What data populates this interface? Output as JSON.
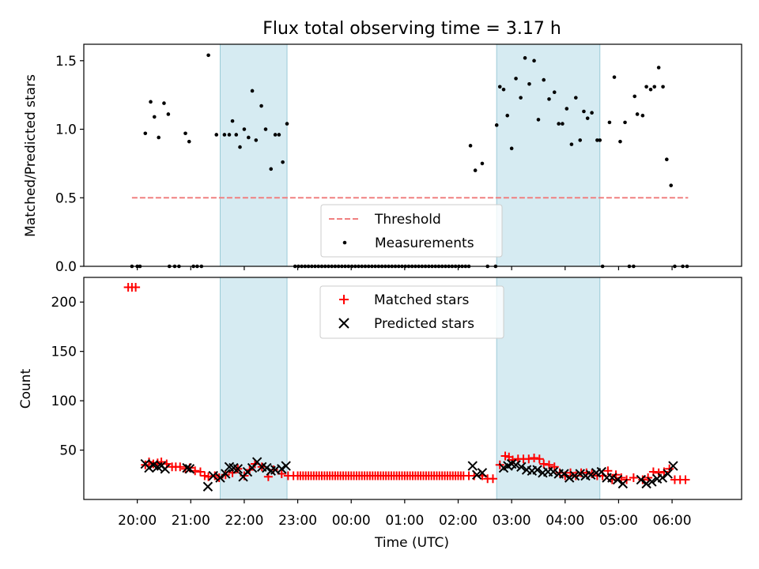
{
  "chart_data": [
    {
      "type": "scatter",
      "title": "Flux total observing time = 3.17 h",
      "xlabel": "",
      "ylabel": "Matched/Predicted stars",
      "ylim": [
        0,
        1.62
      ],
      "yticks": [
        0.0,
        0.5,
        1.0,
        1.5
      ],
      "ytick_labels": [
        "0.0",
        "0.5",
        "1.0",
        "1.5"
      ],
      "shaded_intervals_hours": [
        [
          21.55,
          22.8
        ],
        [
          26.72,
          28.65
        ]
      ],
      "threshold": {
        "name": "Threshold",
        "value": 0.5,
        "x_range_hours": [
          19.9,
          30.3
        ],
        "color": "#f08080"
      },
      "legend": {
        "position": "lower-center",
        "entries": [
          "Threshold",
          "Measurements"
        ]
      },
      "measurements_hours": [
        19.9,
        20.0,
        20.15,
        20.25,
        20.32,
        20.4,
        20.5,
        20.58,
        20.9,
        20.97,
        21.33,
        21.48,
        21.63,
        21.72,
        21.78,
        21.85,
        21.92,
        22.0,
        22.08,
        22.15,
        22.22,
        22.32,
        22.4,
        22.5,
        22.58,
        22.65,
        22.72,
        22.8,
        26.23,
        26.32,
        26.45,
        26.72,
        26.78,
        26.85,
        26.92,
        27.0,
        27.08,
        27.17,
        27.25,
        27.33,
        27.42,
        27.5,
        27.6,
        27.7,
        27.8,
        27.88,
        27.95,
        28.03,
        28.12,
        28.2,
        28.28,
        28.35,
        28.42,
        28.5,
        28.6,
        28.65,
        28.83,
        28.92,
        29.03,
        29.12,
        29.3,
        29.35,
        29.45,
        29.52,
        29.6,
        29.67,
        29.75,
        29.83,
        29.9,
        29.98,
        30.05
      ],
      "measurements_values": [
        0.0,
        0.0,
        0.97,
        1.2,
        1.09,
        0.94,
        1.19,
        1.11,
        0.97,
        0.91,
        1.54,
        0.96,
        0.96,
        0.96,
        1.06,
        0.96,
        0.87,
        1.0,
        0.94,
        1.28,
        0.92,
        1.17,
        1.0,
        0.71,
        0.96,
        0.96,
        0.76,
        1.04,
        0.88,
        0.7,
        0.75,
        1.03,
        1.31,
        1.29,
        1.1,
        0.86,
        1.37,
        1.23,
        1.52,
        1.33,
        1.5,
        1.07,
        1.36,
        1.22,
        1.27,
        1.04,
        1.04,
        1.15,
        0.89,
        1.23,
        0.92,
        1.13,
        1.08,
        1.12,
        0.92,
        0.92,
        1.05,
        1.38,
        0.91,
        1.05,
        1.24,
        1.11,
        1.1,
        1.31,
        1.29,
        1.31,
        1.45,
        1.31,
        0.78,
        0.59,
        0.0
      ],
      "zero_hours": [
        20.05,
        20.6,
        20.7,
        20.78,
        21.05,
        21.12,
        21.2,
        26.55,
        26.7,
        28.7,
        29.2,
        29.28,
        30.2,
        30.28
      ]
    },
    {
      "type": "scatter",
      "xlabel": "Time (UTC)",
      "ylabel": "Count",
      "ylim": [
        0,
        225
      ],
      "yticks": [
        50,
        100,
        150,
        200
      ],
      "ytick_labels": [
        "50",
        "100",
        "150",
        "200"
      ],
      "xlim_hours": [
        19.0,
        31.3
      ],
      "xticks_hours": [
        20,
        21,
        22,
        23,
        24,
        25,
        26,
        27,
        28,
        29,
        30
      ],
      "xtick_labels": [
        "20:00",
        "21:00",
        "22:00",
        "23:00",
        "00:00",
        "01:00",
        "02:00",
        "03:00",
        "04:00",
        "05:00",
        "06:00"
      ],
      "shaded_intervals_hours": [
        [
          21.55,
          22.8
        ],
        [
          26.72,
          28.65
        ]
      ],
      "legend": {
        "position": "top-center",
        "entries": [
          "Matched stars",
          "Predicted stars"
        ]
      },
      "series": [
        {
          "name": "Matched stars",
          "marker": "plus",
          "color": "#ff0000",
          "x_hours": [
            19.83,
            19.9,
            19.97,
            20.15,
            20.22,
            20.3,
            20.38,
            20.45,
            20.55,
            20.65,
            20.72,
            20.8,
            20.9,
            20.98,
            21.08,
            21.18,
            21.26,
            21.33,
            21.45,
            21.53,
            21.65,
            21.78,
            21.88,
            22.0,
            22.1,
            22.2,
            22.33,
            22.45,
            22.55,
            22.7,
            22.82,
            22.92,
            23.0,
            23.1,
            23.2,
            23.3,
            23.4,
            23.5,
            23.6,
            23.7,
            23.8,
            23.9,
            24.0,
            24.1,
            24.2,
            24.3,
            24.4,
            24.5,
            24.6,
            24.7,
            24.8,
            24.9,
            25.0,
            25.1,
            25.2,
            25.3,
            25.4,
            25.5,
            25.6,
            25.7,
            25.8,
            25.9,
            26.0,
            26.1,
            26.2,
            26.3,
            26.45,
            26.55,
            26.65,
            26.78,
            26.88,
            26.95,
            27.02,
            27.12,
            27.22,
            27.32,
            27.42,
            27.52,
            27.6,
            27.7,
            27.8,
            27.9,
            28.0,
            28.1,
            28.2,
            28.3,
            28.4,
            28.5,
            28.6,
            28.7,
            28.8,
            28.88,
            28.95,
            29.05,
            29.15,
            29.28,
            29.45,
            29.55,
            29.65,
            29.75,
            29.85,
            29.95,
            30.05,
            30.15,
            30.25
          ],
          "y": [
            215,
            215,
            215,
            35,
            38,
            36,
            37,
            38,
            36,
            33,
            33,
            33,
            31,
            32,
            29,
            28,
            24,
            23,
            24,
            22,
            25,
            27,
            31,
            24,
            30,
            36,
            33,
            23,
            30,
            26,
            24,
            24,
            24,
            24,
            24,
            24,
            24,
            24,
            24,
            24,
            24,
            24,
            24,
            24,
            24,
            24,
            24,
            24,
            24,
            24,
            24,
            24,
            24,
            24,
            24,
            24,
            24,
            24,
            24,
            24,
            24,
            24,
            24,
            24,
            24,
            24,
            24,
            21,
            21,
            35,
            44,
            43,
            40,
            41,
            41,
            41,
            42,
            41,
            36,
            35,
            33,
            27,
            24,
            27,
            24,
            27,
            27,
            26,
            24,
            24,
            29,
            20,
            25,
            22,
            20,
            22,
            20,
            22,
            28,
            27,
            28,
            31,
            20,
            20,
            20
          ]
        },
        {
          "name": "Predicted stars",
          "marker": "x",
          "color": "#000000",
          "x_hours": [
            20.15,
            20.22,
            20.3,
            20.38,
            20.45,
            20.52,
            20.93,
            20.98,
            21.32,
            21.42,
            21.55,
            21.65,
            21.72,
            21.8,
            21.88,
            21.98,
            22.06,
            22.15,
            22.24,
            22.33,
            22.42,
            22.5,
            22.58,
            22.7,
            22.78,
            26.27,
            26.35,
            26.45,
            26.85,
            26.93,
            27.0,
            27.08,
            27.18,
            27.28,
            27.38,
            27.48,
            27.58,
            27.68,
            27.78,
            27.88,
            27.98,
            28.08,
            28.18,
            28.28,
            28.38,
            28.48,
            28.58,
            28.68,
            28.78,
            28.88,
            28.98,
            29.08,
            29.42,
            29.52,
            29.62,
            29.72,
            29.82,
            29.92,
            30.02
          ],
          "y": [
            36,
            32,
            35,
            33,
            34,
            31,
            32,
            31,
            13,
            24,
            22,
            26,
            33,
            32,
            31,
            23,
            28,
            32,
            38,
            33,
            32,
            29,
            30,
            31,
            34,
            34,
            25,
            27,
            32,
            34,
            36,
            35,
            33,
            30,
            29,
            30,
            27,
            28,
            28,
            26,
            26,
            22,
            24,
            26,
            24,
            25,
            27,
            28,
            22,
            22,
            20,
            16,
            20,
            16,
            18,
            21,
            22,
            26,
            34
          ]
        }
      ]
    }
  ]
}
